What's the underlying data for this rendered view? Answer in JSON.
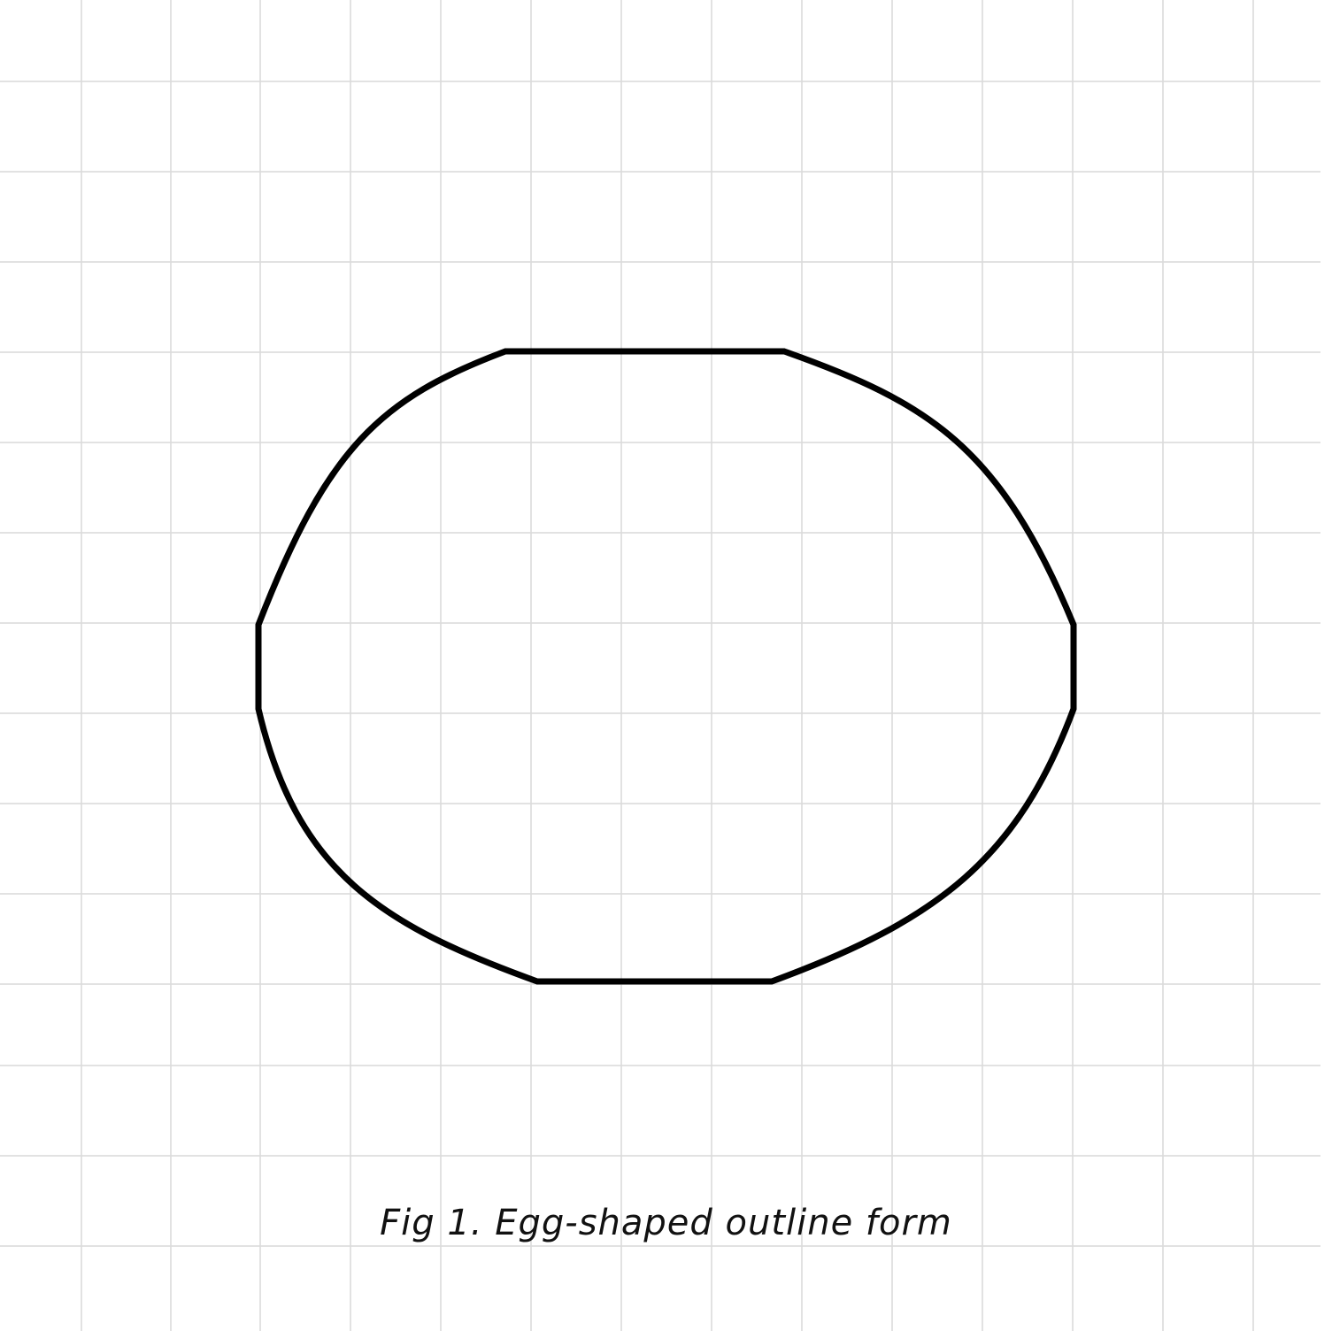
{
  "figure": {
    "caption": "Fig 1. Egg-shaped outline form"
  },
  "colors": {
    "background": "#ffffff",
    "grid": "#d9d9d9",
    "outline": "#000000",
    "caption": "#111111"
  }
}
